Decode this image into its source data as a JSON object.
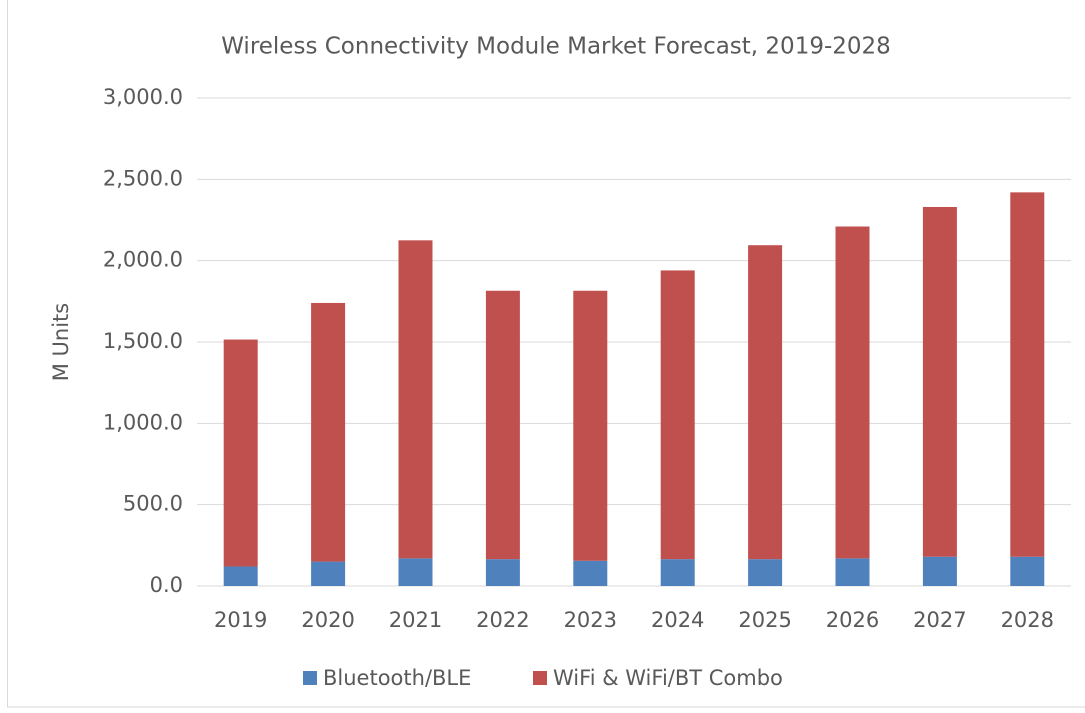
{
  "chart_data": {
    "type": "stacked_bar",
    "title": "Wireless Connectivity Module Market Forecast, 2019-2028",
    "y_label": "M Units",
    "categories": [
      "2019",
      "2020",
      "2021",
      "2022",
      "2023",
      "2024",
      "2025",
      "2026",
      "2027",
      "2028"
    ],
    "series": [
      {
        "name": "Bluetooth/BLE",
        "color": "#4f81bd",
        "values": [
          120,
          150,
          170,
          165,
          155,
          165,
          165,
          170,
          180,
          180
        ]
      },
      {
        "name": "WiFi & WiFi/BT Combo",
        "color": "#c0504d",
        "values": [
          1395,
          1590,
          1955,
          1650,
          1660,
          1775,
          1930,
          2040,
          2150,
          2240
        ]
      }
    ],
    "ylim": [
      0,
      3000
    ],
    "yticks": [
      {
        "value": 0,
        "label": "0.0"
      },
      {
        "value": 500,
        "label": "500.0"
      },
      {
        "value": 1000,
        "label": "1,000.0"
      },
      {
        "value": 1500,
        "label": "1,500.0"
      },
      {
        "value": 2000,
        "label": "2,000.0"
      },
      {
        "value": 2500,
        "label": "2,500.0"
      },
      {
        "value": 3000,
        "label": "3,000.0"
      }
    ],
    "grid": true,
    "legend": "bottom"
  }
}
